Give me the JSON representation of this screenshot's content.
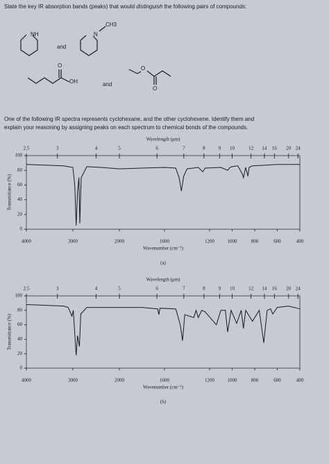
{
  "document": {
    "question": {
      "prefix": "State the key IR absorption bands (peaks) that would",
      "emphasis": "distinguish",
      "suffix": "the following pairs of compounds:"
    },
    "molecules": {
      "nh": "NH",
      "ch3": "CH3",
      "n": "N",
      "and1": "and",
      "o1": "O",
      "oh": "OH",
      "and2": "and",
      "o2": "O",
      "o3": "O"
    },
    "prompt": [
      "One of the following IR spectra represents cyclohexane, and the other cyclohexene. Identify them and",
      "explain your reasoning by assigning peaks on each spectrum to chemical bonds of the compounds."
    ]
  },
  "chart_data": [
    {
      "type": "line",
      "caption": "(a)",
      "xlabel": "Wavenumber (cm⁻¹)",
      "x2label": "Wavelength (μm)",
      "ylabel": "Transmittance (%)",
      "color": "#1a1a1e",
      "xlim": [
        4000,
        400
      ],
      "xbreak": 2000,
      "xticks": [
        4000,
        3000,
        2000,
        1600,
        1200,
        1000,
        800,
        600,
        400
      ],
      "x2ticks": [
        2.5,
        3,
        4,
        5,
        6,
        7,
        8,
        9,
        10,
        12,
        14,
        16,
        20,
        24
      ],
      "ylim": [
        0,
        100
      ],
      "yticks": [
        0,
        20,
        40,
        60,
        80,
        100
      ],
      "x": [
        4000,
        3600,
        3200,
        3000,
        2960,
        2930,
        2900,
        2870,
        2850,
        2820,
        2700,
        2400,
        2200,
        2000,
        1800,
        1600,
        1500,
        1470,
        1450,
        1430,
        1400,
        1300,
        1260,
        1240,
        1100,
        1040,
        1020,
        1000,
        950,
        910,
        900,
        880,
        860,
        850,
        820,
        700,
        600,
        500,
        400
      ],
      "values": [
        88,
        87,
        86,
        84,
        60,
        5,
        50,
        70,
        8,
        70,
        85,
        84,
        83,
        82,
        83,
        84,
        83,
        70,
        52,
        72,
        82,
        84,
        78,
        83,
        84,
        80,
        84,
        85,
        86,
        75,
        70,
        84,
        72,
        84,
        86,
        87,
        88,
        88,
        88
      ]
    },
    {
      "type": "line",
      "caption": "(b)",
      "xlabel": "Wavenumber (cm⁻¹)",
      "x2label": "Wavelength (μm)",
      "ylabel": "Transmittance (%)",
      "color": "#1a1a1e",
      "xlim": [
        4000,
        400
      ],
      "xbreak": 2000,
      "xticks": [
        4000,
        3000,
        2000,
        1600,
        1200,
        1000,
        800,
        600,
        400
      ],
      "x2ticks": [
        2.5,
        3,
        4,
        5,
        6,
        7,
        8,
        9,
        10,
        12,
        14,
        16,
        20,
        24
      ],
      "ylim": [
        0,
        100
      ],
      "yticks": [
        0,
        20,
        40,
        60,
        80,
        100
      ],
      "x": [
        4000,
        3600,
        3200,
        3100,
        3020,
        2990,
        2930,
        2900,
        2860,
        2830,
        2700,
        2400,
        2000,
        1800,
        1660,
        1650,
        1640,
        1500,
        1460,
        1440,
        1420,
        1340,
        1320,
        1300,
        1270,
        1240,
        1140,
        1100,
        1060,
        1040,
        1010,
        960,
        920,
        900,
        880,
        820,
        760,
        720,
        690,
        660,
        640,
        600,
        500,
        400
      ],
      "values": [
        88,
        87,
        86,
        84,
        72,
        80,
        18,
        45,
        30,
        75,
        84,
        84,
        84,
        84,
        82,
        74,
        83,
        82,
        60,
        38,
        74,
        70,
        80,
        70,
        80,
        78,
        60,
        80,
        80,
        50,
        80,
        62,
        80,
        55,
        80,
        65,
        80,
        35,
        80,
        82,
        75,
        84,
        86,
        82
      ]
    }
  ]
}
